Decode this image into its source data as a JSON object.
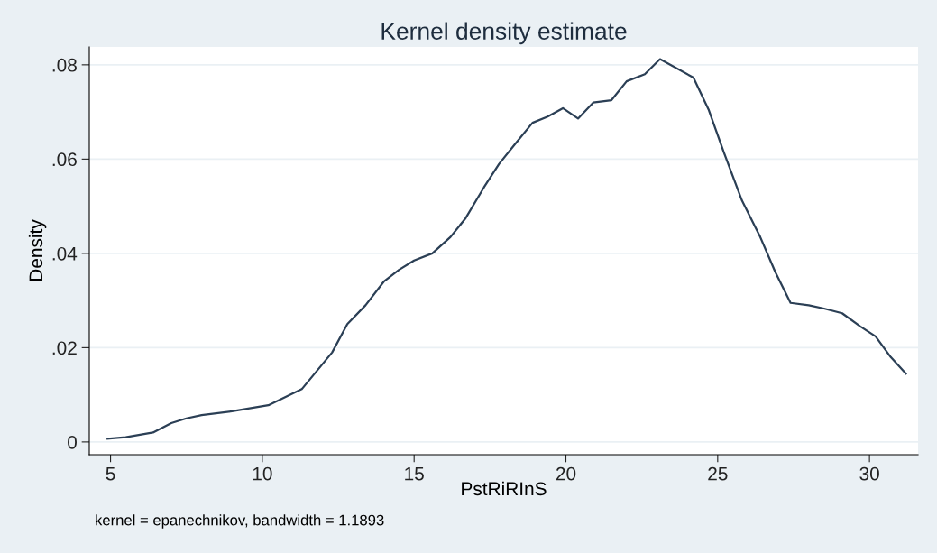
{
  "chart_data": {
    "type": "line",
    "title": "Kernel density estimate",
    "xlabel": "PstRiRInS",
    "ylabel": "Density",
    "annotations": [
      "kernel = epanechnikov, bandwidth = 1.1893"
    ],
    "x": [
      4.9,
      5.5,
      6.4,
      7.0,
      7.5,
      8.0,
      9.0,
      10.2,
      11.3,
      12.3,
      12.8,
      13.4,
      14.0,
      14.5,
      15.0,
      15.6,
      16.2,
      16.7,
      17.3,
      17.8,
      18.3,
      18.9,
      19.4,
      19.9,
      20.4,
      20.9,
      21.5,
      22.0,
      22.6,
      23.1,
      24.2,
      24.7,
      25.2,
      25.8,
      26.4,
      26.9,
      27.4,
      28.0,
      28.5,
      29.1,
      29.7,
      30.2,
      30.7,
      31.2
    ],
    "series": [
      {
        "color": "#2b3f55",
        "values": [
          0.0007,
          0.001,
          0.002,
          0.004,
          0.005,
          0.0057,
          0.0065,
          0.0078,
          0.0112,
          0.019,
          0.025,
          0.029,
          0.034,
          0.0365,
          0.0385,
          0.04,
          0.0435,
          0.0475,
          0.054,
          0.059,
          0.063,
          0.0677,
          0.069,
          0.0708,
          0.0686,
          0.072,
          0.0725,
          0.0765,
          0.078,
          0.0812,
          0.0773,
          0.0705,
          0.0615,
          0.0512,
          0.0435,
          0.036,
          0.0295,
          0.029,
          0.0283,
          0.0273,
          0.0245,
          0.0224,
          0.018,
          0.0145
        ]
      }
    ],
    "xlim": [
      4.3,
      31.6
    ],
    "ylim": [
      -0.0027,
      0.0838
    ],
    "xticks": [
      5,
      10,
      15,
      20,
      25,
      30
    ],
    "yticks": [
      {
        "value": 0,
        "label": "0"
      },
      {
        "value": 0.02,
        "label": ".02"
      },
      {
        "value": 0.04,
        "label": ".04"
      },
      {
        "value": 0.06,
        "label": ".06"
      },
      {
        "value": 0.08,
        "label": ".08"
      }
    ],
    "grid": "y",
    "marker": "none",
    "line_style": "solid",
    "legend": false
  }
}
